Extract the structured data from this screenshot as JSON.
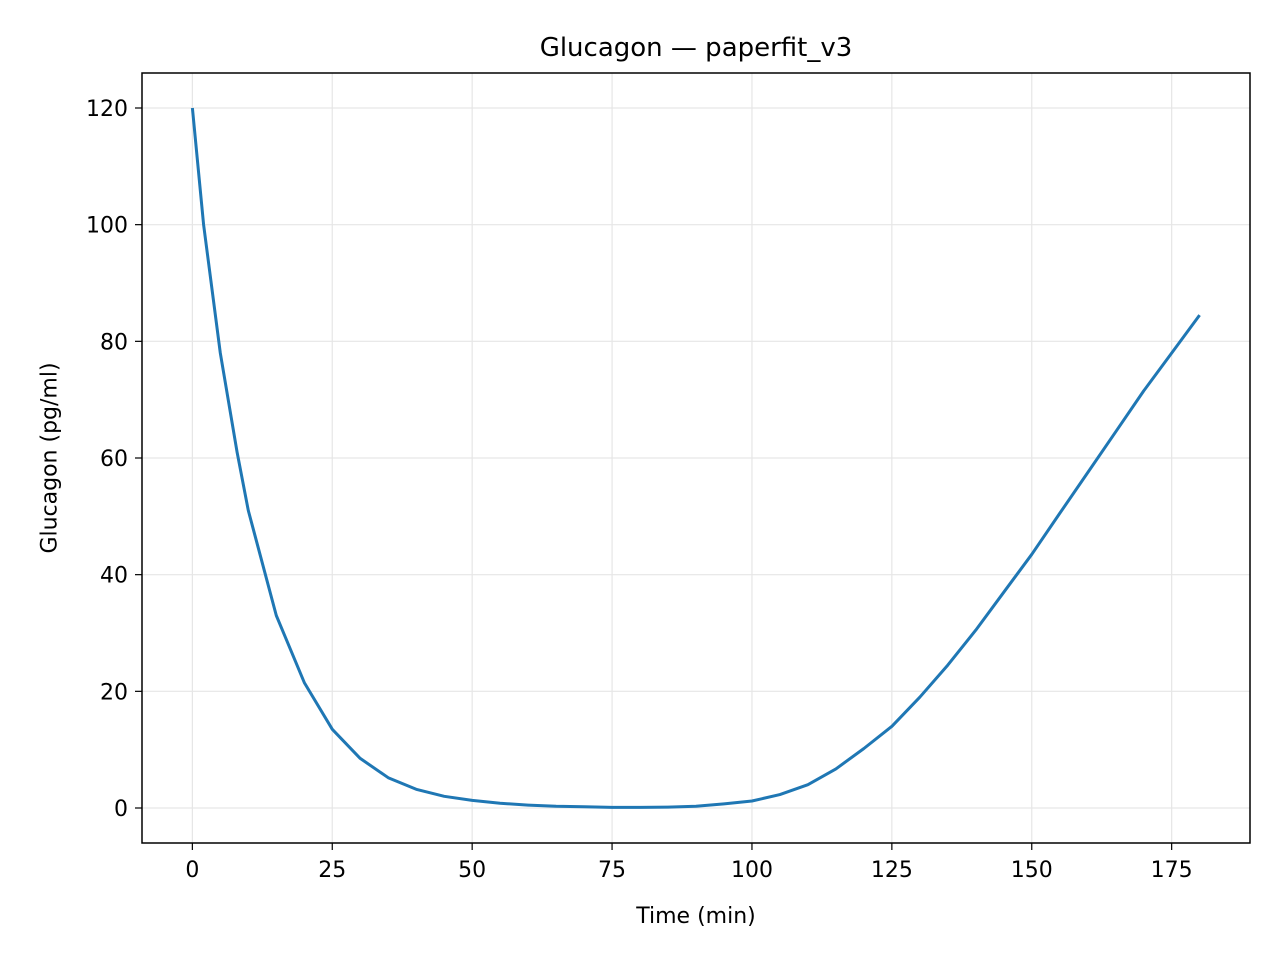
{
  "chart_data": {
    "type": "line",
    "title": "Glucagon — paperfit_v3",
    "xlabel": "Time (min)",
    "ylabel": "Glucagon (pg/ml)",
    "xlim": [
      -9,
      189
    ],
    "ylim": [
      -6,
      126
    ],
    "xticks": [
      0,
      25,
      50,
      75,
      100,
      125,
      150,
      175
    ],
    "yticks": [
      0,
      20,
      40,
      60,
      80,
      100,
      120
    ],
    "xtick_labels": [
      "0",
      "25",
      "50",
      "75",
      "100",
      "125",
      "150",
      "175"
    ],
    "ytick_labels": [
      "0",
      "20",
      "40",
      "60",
      "80",
      "100",
      "120"
    ],
    "grid": true,
    "legend": "none",
    "colors": {
      "line": "#1f77b4",
      "grid": "#e6e6e6",
      "axes": "#000000"
    },
    "series": [
      {
        "x": [
          0,
          2,
          5,
          8,
          10,
          15,
          20,
          25,
          30,
          35,
          40,
          45,
          50,
          55,
          60,
          65,
          70,
          75,
          80,
          85,
          90,
          95,
          100,
          105,
          110,
          115,
          120,
          125,
          130,
          135,
          140,
          145,
          150,
          155,
          160,
          165,
          170,
          175,
          180
        ],
        "y": [
          120,
          100,
          78,
          61,
          51,
          33,
          21.5,
          13.5,
          8.5,
          5.2,
          3.2,
          2.0,
          1.3,
          0.8,
          0.5,
          0.3,
          0.2,
          0.1,
          0.1,
          0.15,
          0.3,
          0.7,
          1.2,
          2.3,
          4.0,
          6.7,
          10.2,
          14.0,
          19.0,
          24.5,
          30.5,
          37.0,
          43.5,
          50.5,
          57.5,
          64.5,
          71.5,
          78.0,
          84.5
        ]
      }
    ]
  }
}
